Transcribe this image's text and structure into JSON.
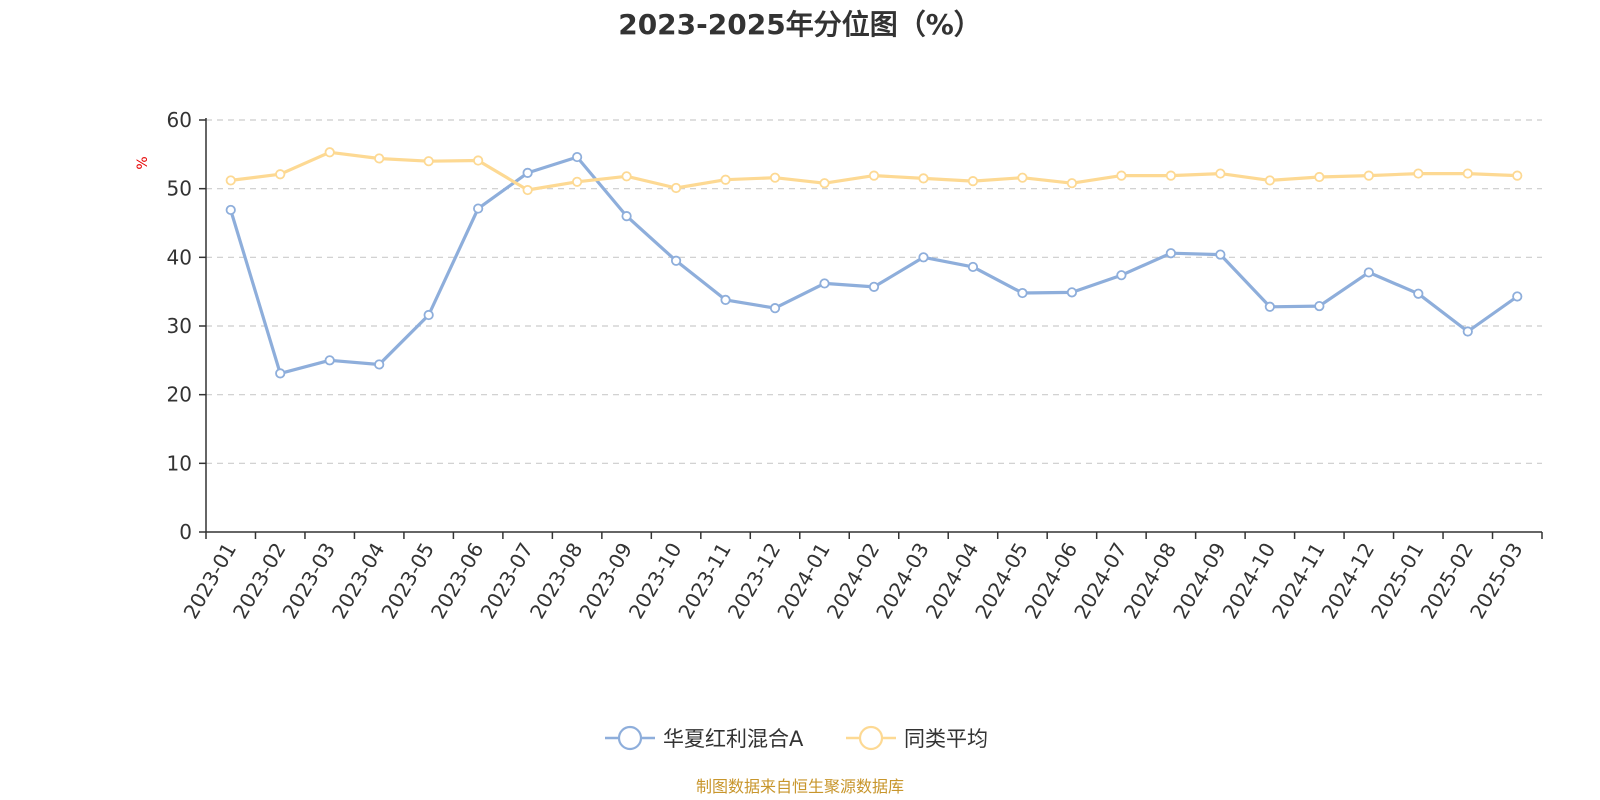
{
  "chart_data": {
    "type": "line",
    "title": "2023-2025年分位图（%）",
    "ylabel": "%",
    "ylim": [
      0,
      60
    ],
    "yticks": [
      0,
      10,
      20,
      30,
      40,
      50,
      60
    ],
    "grid": true,
    "legend_position": "bottom",
    "categories": [
      "2023-01",
      "2023-02",
      "2023-03",
      "2023-04",
      "2023-05",
      "2023-06",
      "2023-07",
      "2023-08",
      "2023-09",
      "2023-10",
      "2023-11",
      "2023-12",
      "2024-01",
      "2024-02",
      "2024-03",
      "2024-04",
      "2024-05",
      "2024-06",
      "2024-07",
      "2024-08",
      "2024-09",
      "2024-10",
      "2024-11",
      "2024-12",
      "2025-01",
      "2025-02",
      "2025-03"
    ],
    "series": [
      {
        "name": "华夏红利混合A",
        "color": "#8eaedb",
        "values": [
          46.9,
          23.1,
          25.0,
          24.4,
          31.6,
          47.1,
          52.3,
          54.6,
          46.0,
          39.5,
          33.8,
          32.6,
          36.2,
          35.7,
          40.0,
          38.6,
          34.8,
          34.9,
          37.4,
          40.6,
          40.4,
          32.8,
          32.9,
          37.8,
          34.7,
          29.2,
          34.3
        ]
      },
      {
        "name": "同类平均",
        "color": "#fdd993",
        "values": [
          51.2,
          52.1,
          55.3,
          54.4,
          54.0,
          54.1,
          49.8,
          51.0,
          51.8,
          50.1,
          51.3,
          51.6,
          50.8,
          51.9,
          51.5,
          51.1,
          51.6,
          50.8,
          51.9,
          51.9,
          52.2,
          51.2,
          51.7,
          51.9,
          52.2,
          52.2,
          51.9
        ]
      }
    ]
  },
  "source_text": "制图数据来自恒生聚源数据库",
  "colors": {
    "axis": "#333333",
    "grid": "#cccccc",
    "ylabel": "#e60000",
    "source": "#c8962c"
  }
}
